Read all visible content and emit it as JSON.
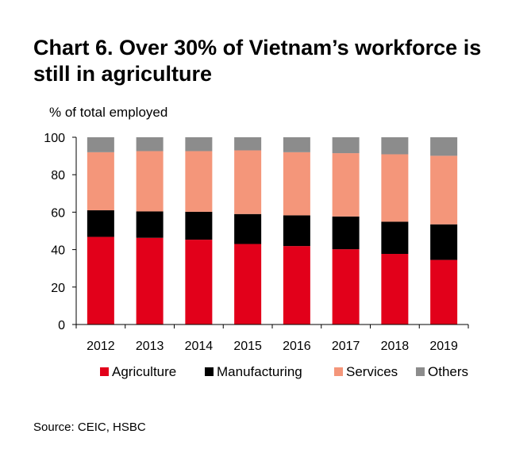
{
  "chart_data": {
    "type": "bar",
    "stacked": true,
    "title": "Chart 6. Over 30% of Vietnam’s workforce is still in agriculture",
    "ylabel": "% of total  employed",
    "ylim": [
      0,
      100
    ],
    "yticks": [
      0,
      20,
      40,
      60,
      80,
      100
    ],
    "categories": [
      "2012",
      "2013",
      "2014",
      "2015",
      "2016",
      "2017",
      "2018",
      "2019"
    ],
    "series": [
      {
        "name": "Agriculture",
        "color": "#e2001a",
        "values": [
          46.8,
          46.3,
          45.3,
          43.0,
          41.9,
          40.2,
          37.7,
          34.5
        ]
      },
      {
        "name": "Manufacturing",
        "color": "#000000",
        "values": [
          14.2,
          14.1,
          14.9,
          16.0,
          16.4,
          17.5,
          17.2,
          19.0
        ]
      },
      {
        "name": "Services",
        "color": "#f4967a",
        "values": [
          31.0,
          32.2,
          32.4,
          34.0,
          33.7,
          33.8,
          36.0,
          36.6
        ]
      },
      {
        "name": "Others",
        "color": "#8c8c8c",
        "values": [
          8.0,
          7.4,
          7.4,
          7.0,
          8.0,
          8.5,
          9.1,
          9.9
        ]
      }
    ],
    "legend_position": "bottom",
    "grid": false
  },
  "source": "Source: CEIC, HSBC"
}
